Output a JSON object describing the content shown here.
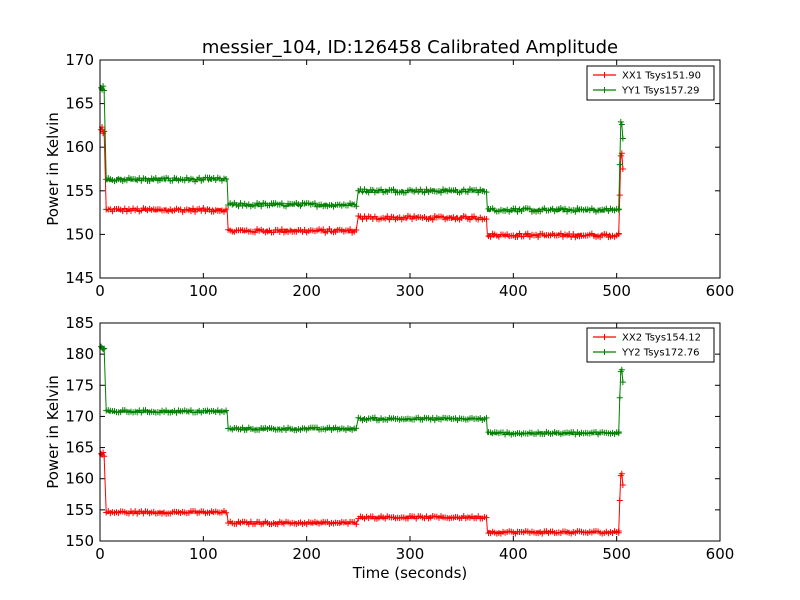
{
  "chart_data": [
    {
      "type": "line",
      "title": "messier_104, ID:126458 Calibrated Amplitude",
      "xlabel": "",
      "ylabel": "Power in Kelvin",
      "xlim": [
        0,
        600
      ],
      "ylim": [
        145,
        170
      ],
      "xticks": [
        "0",
        "100",
        "200",
        "300",
        "400",
        "500",
        "600"
      ],
      "yticks": [
        "145",
        "150",
        "155",
        "160",
        "165",
        "170"
      ],
      "grid": false,
      "legend_position": "top-right",
      "series": [
        {
          "name": "XX1 Tsys151.90",
          "color": "#ff0000",
          "marker": "+",
          "spikes": [
            [
              1,
              162.0
            ],
            [
              2,
              162.3
            ],
            [
              3,
              161.6
            ],
            [
              4,
              161.8
            ]
          ],
          "levels": [
            [
              6,
              123,
              152.8
            ],
            [
              124,
              248,
              150.4
            ],
            [
              250,
              374,
              151.9
            ],
            [
              375,
              502,
              149.9
            ]
          ],
          "tail": [
            [
              502,
              150.1
            ],
            [
              503,
              154.5
            ],
            [
              504,
              159.0
            ],
            [
              505,
              159.3
            ],
            [
              506,
              157.5
            ]
          ]
        },
        {
          "name": "YY1 Tsys157.29",
          "color": "#008000",
          "marker": "+",
          "spikes": [
            [
              1,
              166.8
            ],
            [
              2,
              166.6
            ],
            [
              3,
              167.0
            ],
            [
              4,
              166.5
            ]
          ],
          "levels": [
            [
              6,
              123,
              156.3
            ],
            [
              124,
              248,
              153.4
            ],
            [
              250,
              374,
              155.0
            ],
            [
              375,
              502,
              152.8
            ]
          ],
          "tail": [
            [
              502,
              152.9
            ],
            [
              503,
              158.0
            ],
            [
              504,
              162.9
            ],
            [
              505,
              162.6
            ],
            [
              506,
              161.0
            ]
          ]
        }
      ]
    },
    {
      "type": "line",
      "title": "",
      "xlabel": "Time (seconds)",
      "ylabel": "Power in Kelvin",
      "xlim": [
        0,
        600
      ],
      "ylim": [
        150,
        185
      ],
      "xticks": [
        "0",
        "100",
        "200",
        "300",
        "400",
        "500",
        "600"
      ],
      "yticks": [
        "150",
        "155",
        "160",
        "165",
        "170",
        "175",
        "180",
        "185"
      ],
      "grid": false,
      "legend_position": "top-right",
      "series": [
        {
          "name": "XX2 Tsys154.12",
          "color": "#ff0000",
          "marker": "+",
          "spikes": [
            [
              1,
              164.0
            ],
            [
              2,
              163.8
            ],
            [
              3,
              164.2
            ],
            [
              4,
              163.6
            ]
          ],
          "levels": [
            [
              6,
              123,
              154.6
            ],
            [
              124,
              248,
              152.9
            ],
            [
              250,
              374,
              153.8
            ],
            [
              375,
              502,
              151.4
            ]
          ],
          "tail": [
            [
              502,
              151.6
            ],
            [
              503,
              156.5
            ],
            [
              504,
              160.5
            ],
            [
              505,
              160.8
            ],
            [
              506,
              159.0
            ]
          ]
        },
        {
          "name": "YY2 Tsys172.76",
          "color": "#008000",
          "marker": "+",
          "spikes": [
            [
              1,
              181.2
            ],
            [
              2,
              181.0
            ],
            [
              3,
              180.8
            ],
            [
              4,
              180.9
            ]
          ],
          "levels": [
            [
              6,
              123,
              170.8
            ],
            [
              124,
              248,
              168.0
            ],
            [
              250,
              374,
              169.6
            ],
            [
              375,
              502,
              167.3
            ]
          ],
          "tail": [
            [
              502,
              167.5
            ],
            [
              503,
              173.0
            ],
            [
              504,
              177.2
            ],
            [
              505,
              177.5
            ],
            [
              506,
              175.5
            ]
          ]
        }
      ]
    }
  ]
}
